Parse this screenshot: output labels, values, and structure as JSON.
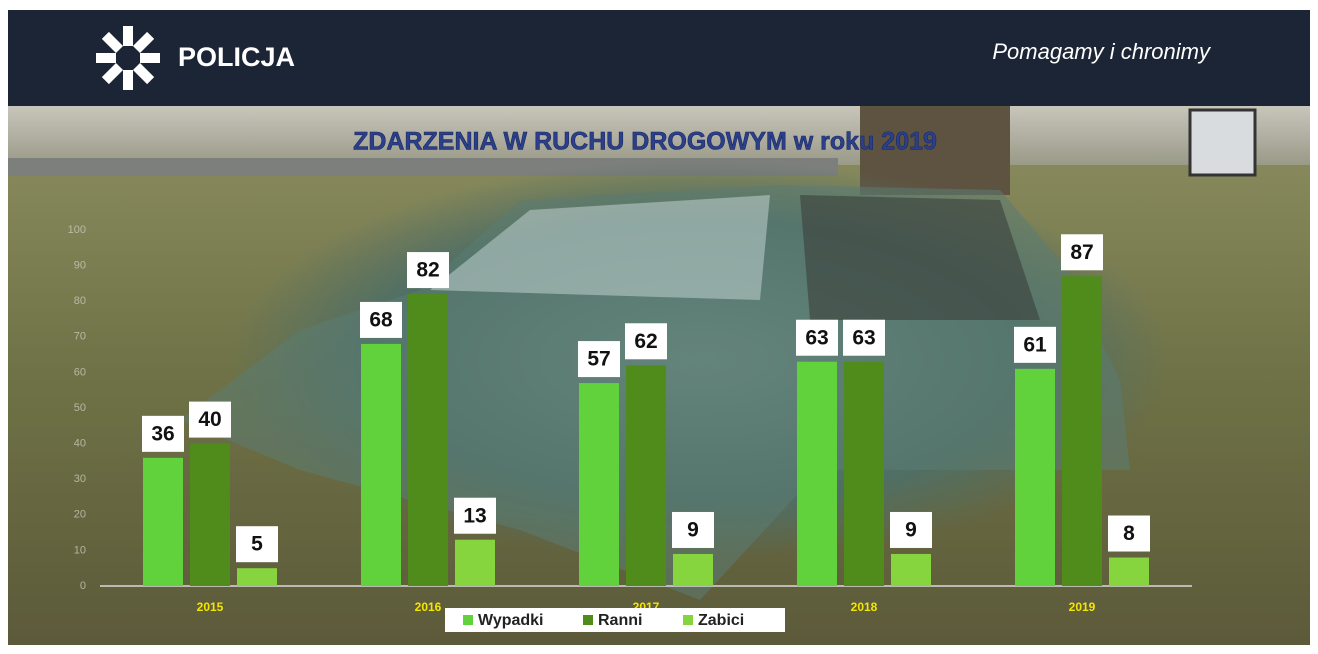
{
  "header": {
    "brand": "POLICJA",
    "slogan": "Pomagamy i chronimy"
  },
  "chart_data": {
    "type": "bar",
    "title": "ZDARZENIA W RUCHU DROGOWYM w roku 2019",
    "categories": [
      "2015",
      "2016",
      "2017",
      "2018",
      "2019"
    ],
    "series": [
      {
        "name": "Wypadki",
        "color": "#62d23c",
        "values": [
          36,
          68,
          57,
          63,
          61
        ]
      },
      {
        "name": "Ranni",
        "color": "#4f8c1c",
        "values": [
          40,
          82,
          62,
          63,
          87
        ]
      },
      {
        "name": "Zabici",
        "color": "#86d43e",
        "values": [
          5,
          13,
          9,
          9,
          8
        ]
      }
    ],
    "ylim": [
      0,
      100
    ],
    "yticks": [
      0,
      10,
      20,
      30,
      40,
      50,
      60,
      70,
      80,
      90,
      100
    ],
    "grid": false,
    "legend": "bottom"
  }
}
